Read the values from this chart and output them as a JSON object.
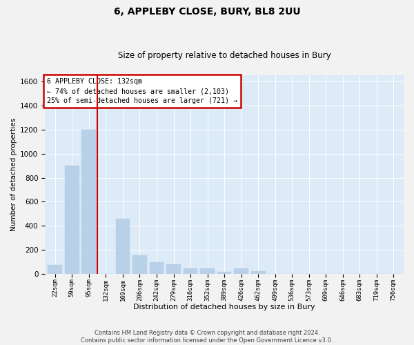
{
  "title1": "6, APPLEBY CLOSE, BURY, BL8 2UU",
  "title2": "Size of property relative to detached houses in Bury",
  "xlabel": "Distribution of detached houses by size in Bury",
  "ylabel": "Number of detached properties",
  "annotation_line1": "6 APPLEBY CLOSE: 132sqm",
  "annotation_line2": "← 74% of detached houses are smaller (2,103)",
  "annotation_line3": "25% of semi-detached houses are larger (721) →",
  "footer1": "Contains HM Land Registry data © Crown copyright and database right 2024.",
  "footer2": "Contains public sector information licensed under the Open Government Licence v3.0.",
  "bar_color": "#b8d0e8",
  "red_line_color": "#cc0000",
  "categories": [
    "22sqm",
    "59sqm",
    "95sqm",
    "132sqm",
    "169sqm",
    "206sqm",
    "242sqm",
    "279sqm",
    "316sqm",
    "352sqm",
    "389sqm",
    "426sqm",
    "462sqm",
    "499sqm",
    "536sqm",
    "573sqm",
    "609sqm",
    "646sqm",
    "683sqm",
    "719sqm",
    "756sqm"
  ],
  "values": [
    75,
    900,
    1200,
    0,
    460,
    155,
    100,
    80,
    45,
    45,
    20,
    45,
    25,
    0,
    0,
    0,
    0,
    0,
    0,
    0,
    0
  ],
  "red_line_index": 3,
  "ylim": [
    0,
    1650
  ],
  "yticks": [
    0,
    200,
    400,
    600,
    800,
    1000,
    1200,
    1400,
    1600
  ],
  "background_color": "#ddeaf7",
  "grid_color": "#ffffff",
  "fig_bg_color": "#f2f2f2",
  "annotation_box_facecolor": "#ffffff",
  "annotation_box_edgecolor": "#cc0000",
  "title1_fontsize": 10,
  "title2_fontsize": 8.5,
  "ylabel_fontsize": 7.5,
  "xlabel_fontsize": 8,
  "annotation_fontsize": 7.2,
  "ytick_fontsize": 7.5,
  "xtick_fontsize": 6.5,
  "footer_fontsize": 6
}
